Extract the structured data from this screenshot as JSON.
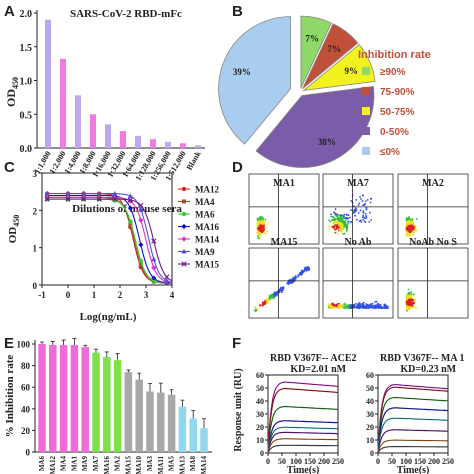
{
  "panels": {
    "A": "A",
    "B": "B",
    "C": "C",
    "D": "D",
    "E": "E",
    "F": "F"
  },
  "colors": {
    "pink": "#f06ad8",
    "lavender": "#c8a8f0",
    "green": "#7ee04a",
    "grey": "#a8a8a8",
    "cyan": "#8fd8ee",
    "pie_green": "#8fd86a",
    "pie_red": "#c0503a",
    "pie_yellow": "#f2f21e",
    "pie_purple": "#7a5ca8",
    "pie_blue": "#a9cdee"
  },
  "chart_data": [
    {
      "id": "A",
      "type": "bar",
      "title": "SARS-CoV-2 RBD-mFc",
      "xlabel": "Dilutions of mouse sera",
      "ylabel": "OD450",
      "categories": [
        "1:1,000",
        "1:2,000",
        "1:4,000",
        "1:8,000",
        "1:16,000",
        "1:32,000",
        "1:64,000",
        "1:128,000",
        "1:256,000",
        "1:512,000",
        "Blank"
      ],
      "values": [
        1.9,
        1.32,
        0.78,
        0.5,
        0.35,
        0.25,
        0.18,
        0.13,
        0.09,
        0.07,
        0.04
      ],
      "ylim": [
        0,
        2.0
      ],
      "yticks": [
        "0.0",
        "0.5",
        "1.0",
        "1.5",
        "2.0"
      ]
    },
    {
      "id": "B",
      "type": "pie",
      "legend_title": "Inhibition rate",
      "legend_position": "right",
      "slices": [
        {
          "label": "≥90%",
          "value": 7,
          "display": "7%",
          "color": "#8fd86a"
        },
        {
          "label": "75-90%",
          "value": 7,
          "display": "7%",
          "color": "#c0503a"
        },
        {
          "label": "50-75%",
          "value": 9,
          "display": "9%",
          "color": "#f2f21e"
        },
        {
          "label": "0-50%",
          "value": 38,
          "display": "38%",
          "color": "#7a5ca8"
        },
        {
          "label": "≤0%",
          "value": 39,
          "display": "39%",
          "color": "#a9cdee"
        }
      ]
    },
    {
      "id": "C",
      "type": "line",
      "xlabel": "Log(ng/mL)",
      "ylabel": "OD450",
      "xlim": [
        -1,
        4
      ],
      "ylim": [
        0,
        3
      ],
      "xticks": [
        "-1",
        "0",
        "1",
        "2",
        "3",
        "4"
      ],
      "yticks": [
        "0",
        "1",
        "2",
        "3"
      ],
      "legend_position": "right",
      "series": [
        {
          "name": "MA12",
          "color": "#e02020",
          "marker": "circle",
          "top": 2.45,
          "ec50": 2.5
        },
        {
          "name": "MA4",
          "color": "#a0522d",
          "marker": "square",
          "top": 2.35,
          "ec50": 2.55
        },
        {
          "name": "MA6",
          "color": "#2fd02f",
          "marker": "circle",
          "top": 2.3,
          "ec50": 2.6
        },
        {
          "name": "MA16",
          "color": "#1010d0",
          "marker": "diamond",
          "top": 2.4,
          "ec50": 2.75
        },
        {
          "name": "MA14",
          "color": "#e030c0",
          "marker": "diamond",
          "top": 2.35,
          "ec50": 3.0
        },
        {
          "name": "MA9",
          "color": "#5050e0",
          "marker": "triangle",
          "top": 2.45,
          "ec50": 3.1
        },
        {
          "name": "MA15",
          "color": "#6a2080",
          "marker": "x",
          "top": 2.3,
          "ec50": 3.3
        }
      ]
    },
    {
      "id": "E",
      "type": "bar",
      "ylabel": "% Inhibition rate",
      "ylim": [
        0,
        100
      ],
      "yticks": [
        "0",
        "20",
        "40",
        "60",
        "80",
        "100"
      ],
      "categories": [
        "MA6",
        "MA12",
        "MA4",
        "MA1",
        "MA9",
        "MA7",
        "MA16",
        "MA2",
        "MA15",
        "MA10",
        "MA3",
        "MA11",
        "MA5",
        "MA13",
        "MA8",
        "MA14"
      ],
      "values": [
        100,
        99,
        99,
        99,
        97,
        92,
        88,
        85,
        74,
        67,
        56,
        55,
        53,
        42,
        31,
        22
      ],
      "colors": [
        "#f06ad8",
        "#f06ad8",
        "#f06ad8",
        "#f06ad8",
        "#f06ad8",
        "#7ee04a",
        "#7ee04a",
        "#7ee04a",
        "#a8a8a8",
        "#a8a8a8",
        "#a8a8a8",
        "#a8a8a8",
        "#a8a8a8",
        "#8fd8ee",
        "#8fd8ee",
        "#8fd8ee"
      ]
    },
    {
      "id": "F1",
      "type": "line",
      "title": "RBD V367F-- ACE2",
      "kd_label": "KD=2.01 nM",
      "ylabel": "Response unit (RU)",
      "xlabel": "Time(s)",
      "xlim": [
        0,
        250
      ],
      "ylim": [
        0,
        60
      ],
      "xticks": [
        "0",
        "50",
        "100",
        "150",
        "200",
        "250"
      ],
      "yticks": [
        "0",
        "10",
        "20",
        "30",
        "40",
        "50",
        "60"
      ],
      "levels": [
        55,
        50,
        36,
        25,
        20,
        16,
        11,
        6
      ]
    },
    {
      "id": "F2",
      "type": "line",
      "title": "RBD V367F-- MA 1",
      "kd_label": "KD=0.23 nM",
      "ylabel": "",
      "xlabel": "Time(s)",
      "xlim": [
        0,
        250
      ],
      "ylim": [
        0,
        60
      ],
      "xticks": [
        "0",
        "50",
        "100",
        "150",
        "200",
        "250"
      ],
      "yticks": [
        "0",
        "10",
        "20",
        "30",
        "40",
        "50",
        "60"
      ],
      "levels": [
        53,
        51,
        43,
        35,
        27,
        18,
        10,
        5
      ]
    }
  ],
  "flow": {
    "panels": [
      {
        "label": "MA1",
        "type": "neg"
      },
      {
        "label": "MA7",
        "type": "pos"
      },
      {
        "label": "MA2",
        "type": "neg"
      },
      {
        "label": "MA15",
        "type": "diag"
      },
      {
        "label": "No Ab",
        "type": "spread"
      },
      {
        "label": "NoAb   No S",
        "type": "neg2"
      }
    ]
  }
}
